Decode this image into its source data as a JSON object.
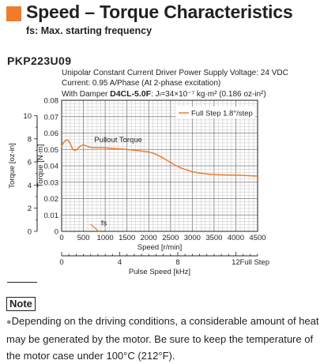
{
  "header": {
    "title": "Speed – Torque Characteristics",
    "subtitle": "fs: Max. starting frequency",
    "accent_color": "#ef7c2b"
  },
  "model": "PKP223U09",
  "conditions": {
    "line1": "Unipolar Constant Current Driver  Power Supply Voltage: 24 VDC",
    "line2": "Current: 0.95 A/Phase (At 2-phase excitation)",
    "line3_label": "With Damper ",
    "line3_model": "D4CL-5.0F",
    "line3_rest": ": Jₗ=34×10⁻⁷ kg·m² (0.186 oz-in²)"
  },
  "chart_data": {
    "type": "line",
    "ylabel": "Torque [N·m]",
    "ylabel_secondary": "Torque [oz-in]",
    "xlabel": "Speed [r/min]",
    "xlabel_secondary": "Pulse Speed [kHz]",
    "xlim": [
      0,
      4500
    ],
    "ylim": [
      0,
      0.08
    ],
    "ylim_secondary": [
      0,
      11.33
    ],
    "x_ticks": [
      "0",
      "500",
      "1000",
      "1500",
      "2000",
      "2500",
      "3000",
      "3500",
      "4000",
      "4500"
    ],
    "y_ticks": [
      "0",
      "0.01",
      "0.02",
      "0.03",
      "0.04",
      "0.05",
      "0.06",
      "0.07",
      "0.08"
    ],
    "y_ticks_secondary": [
      "0",
      "2",
      "4",
      "6",
      "8",
      "10"
    ],
    "x_ticks_secondary": [
      "0",
      "4",
      "8",
      "12",
      "Full Step"
    ],
    "grid": true,
    "legend_position": "top-right",
    "annotations": [
      "Pullout Torque",
      "fs"
    ],
    "series": [
      {
        "name": "Full Step 1.8°/step",
        "color": "#ef7c2b",
        "x": [
          0,
          50,
          100,
          150,
          200,
          260,
          320,
          380,
          440,
          500,
          560,
          620,
          700,
          800,
          900,
          1000,
          1200,
          1400,
          1600,
          1800,
          2000,
          2100,
          2200,
          2300,
          2400,
          2500,
          2600,
          2700,
          2800,
          2900,
          3000,
          3200,
          3400,
          3600,
          3800,
          4000,
          4200,
          4400,
          4500
        ],
        "y": [
          0.052,
          0.0545,
          0.0557,
          0.0555,
          0.0535,
          0.0498,
          0.0493,
          0.0508,
          0.0522,
          0.0528,
          0.0522,
          0.0515,
          0.0512,
          0.0511,
          0.0511,
          0.051,
          0.0506,
          0.0502,
          0.0497,
          0.0491,
          0.0485,
          0.0477,
          0.0466,
          0.0452,
          0.0436,
          0.0421,
          0.0405,
          0.0392,
          0.0381,
          0.0372,
          0.0364,
          0.0354,
          0.0349,
          0.0346,
          0.0344,
          0.0343,
          0.0341,
          0.0339,
          0.0337
        ]
      }
    ],
    "fs_marker": {
      "x": [
        660,
        850
      ],
      "y": [
        0.0045,
        0.0
      ]
    }
  },
  "note": {
    "label": "Note",
    "bullet": "●",
    "text": "Depending on the driving conditions, a considerable amount of heat may be generated by the motor. Be sure to keep the temperature of the motor case under 100°C (212°F)."
  }
}
